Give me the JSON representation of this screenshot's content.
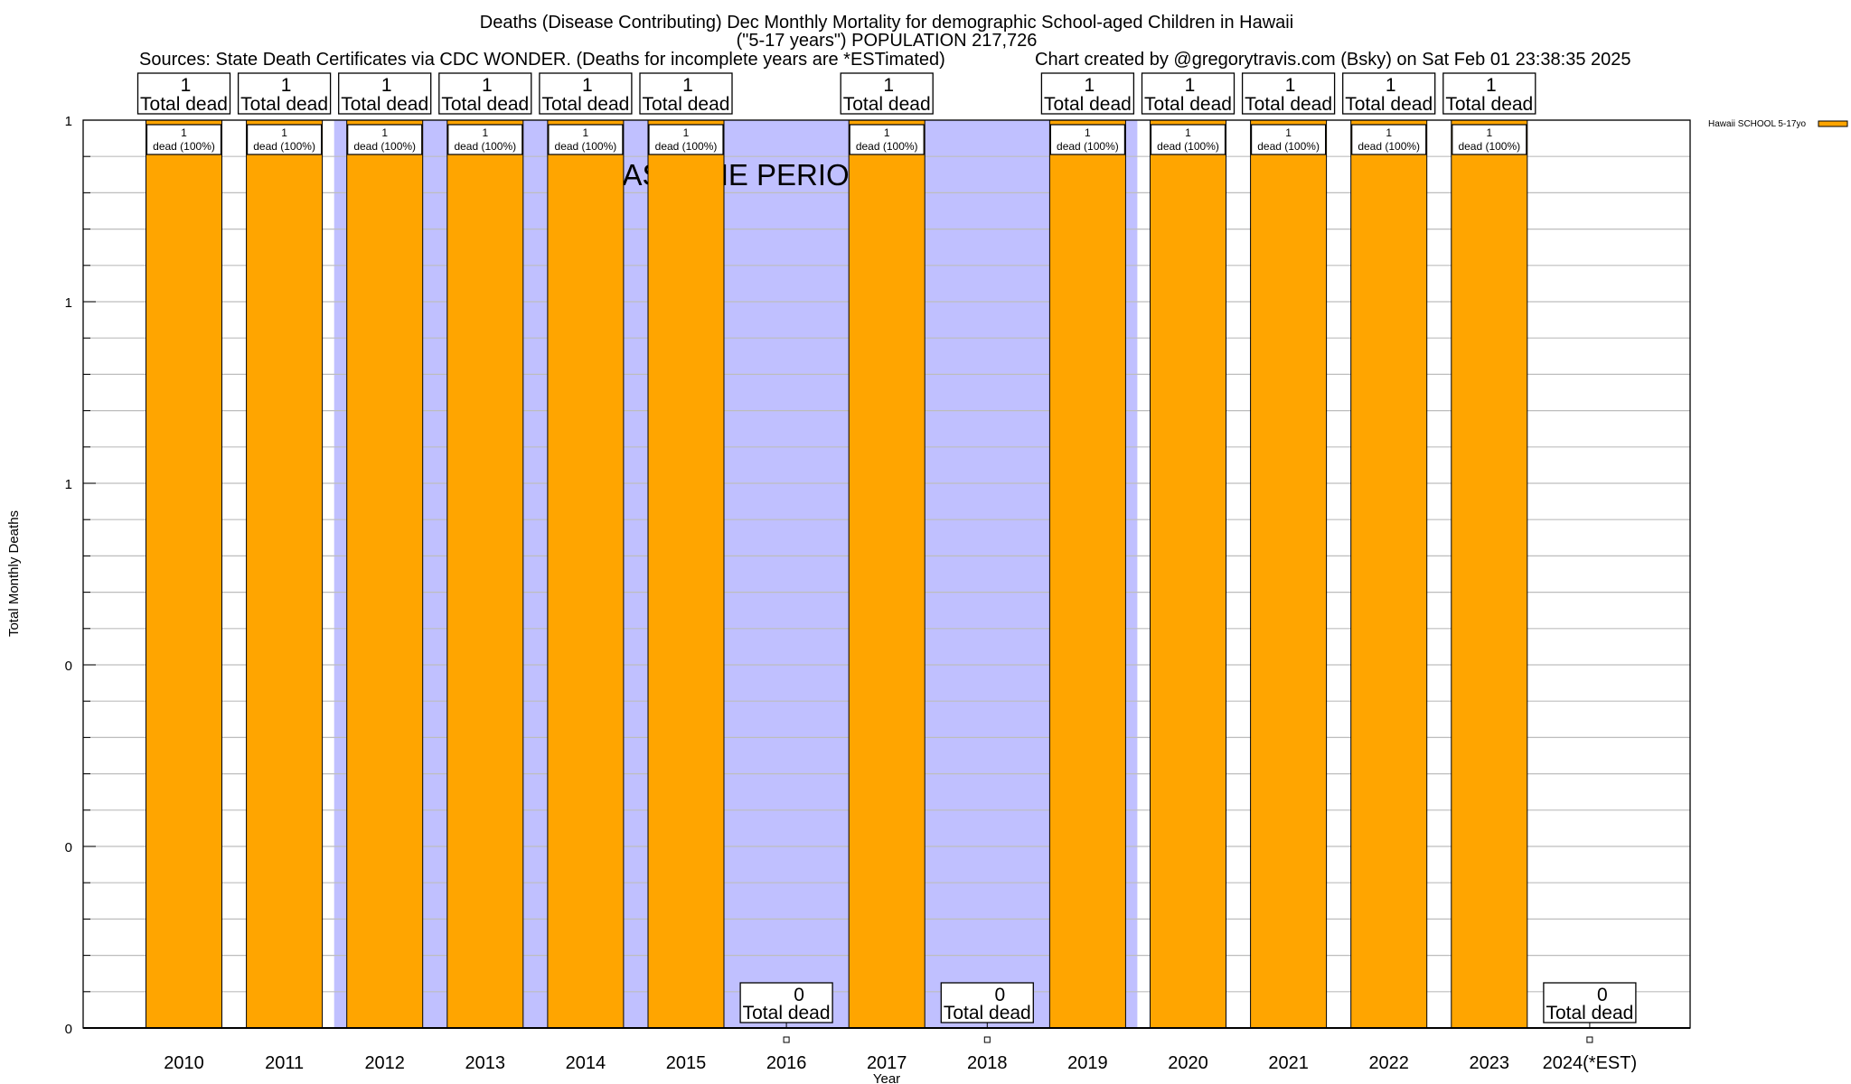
{
  "chart_data": {
    "type": "bar",
    "title": "Deaths (Disease Contributing) Dec Monthly Mortality for demographic School-aged Children in Hawaii",
    "subtitle": "(\"5-17 years\") POPULATION 217,726",
    "sources": "Sources: State Death Certificates via CDC WONDER. (Deaths for incomplete years are *ESTimated)",
    "credit": "Chart created by @gregorytravis.com (Bsky) on Sat Feb 01 23:38:35 2025",
    "xlabel": "Year",
    "ylabel": "Total Monthly Deaths",
    "categories": [
      "2010",
      "2011",
      "2012",
      "2013",
      "2014",
      "2015",
      "2016",
      "2017",
      "2018",
      "2019",
      "2020",
      "2021",
      "2022",
      "2023",
      "2024(*EST)"
    ],
    "series": [
      {
        "name": "Hawaii SCHOOL 5-17yo",
        "color": "#ffa500",
        "values": [
          1,
          1,
          1,
          1,
          1,
          1,
          0,
          1,
          0,
          1,
          1,
          1,
          1,
          1,
          0
        ]
      }
    ],
    "ylim": [
      0,
      1
    ],
    "ytick_values": [
      0,
      0.2,
      0.4,
      0.6,
      0.8,
      1
    ],
    "ytick_labels": [
      "0",
      "0",
      "0",
      "1",
      "1",
      "1"
    ],
    "grid": true,
    "legend_position": "top-right, outside plot",
    "total_label": "Total dead",
    "bar_label_suffix": "dead (100%)",
    "annotation": {
      "text": "BASELINE PERIOD",
      "span_categories": [
        "2012",
        "2019"
      ],
      "color": "#c0c0ff"
    }
  }
}
